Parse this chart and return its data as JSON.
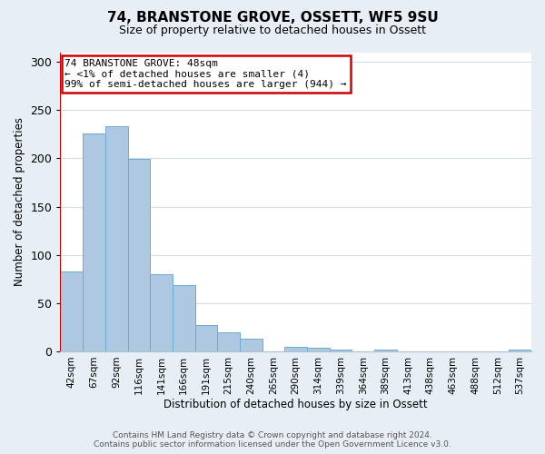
{
  "title_line1": "74, BRANSTONE GROVE, OSSETT, WF5 9SU",
  "title_line2": "Size of property relative to detached houses in Ossett",
  "xlabel": "Distribution of detached houses by size in Ossett",
  "ylabel": "Number of detached properties",
  "categories": [
    "42sqm",
    "67sqm",
    "92sqm",
    "116sqm",
    "141sqm",
    "166sqm",
    "191sqm",
    "215sqm",
    "240sqm",
    "265sqm",
    "290sqm",
    "314sqm",
    "339sqm",
    "364sqm",
    "389sqm",
    "413sqm",
    "438sqm",
    "463sqm",
    "488sqm",
    "512sqm",
    "537sqm"
  ],
  "values": [
    83,
    226,
    233,
    199,
    80,
    69,
    27,
    20,
    13,
    0,
    5,
    4,
    2,
    0,
    2,
    0,
    0,
    0,
    0,
    0,
    2
  ],
  "bar_color": "#adc8e0",
  "bar_edge_color": "#6aaad4",
  "annotation_text": "74 BRANSTONE GROVE: 48sqm\n← <1% of detached houses are smaller (4)\n99% of semi-detached houses are larger (944) →",
  "annotation_box_facecolor": "#ffffff",
  "annotation_box_edgecolor": "#cc0000",
  "ylim": [
    0,
    310
  ],
  "yticks": [
    0,
    50,
    100,
    150,
    200,
    250,
    300
  ],
  "footer_line1": "Contains HM Land Registry data © Crown copyright and database right 2024.",
  "footer_line2": "Contains public sector information licensed under the Open Government Licence v3.0.",
  "fig_facecolor": "#e8eef5",
  "axes_facecolor": "#ffffff",
  "grid_color": "#d0dce8",
  "spine_color": "#b0bec8",
  "red_line_color": "#cc0000",
  "title1_fontsize": 11,
  "title2_fontsize": 9,
  "xlabel_fontsize": 8.5,
  "ylabel_fontsize": 8.5,
  "xtick_fontsize": 7.5,
  "ytick_fontsize": 9,
  "ann_fontsize": 8,
  "footer_fontsize": 6.5
}
